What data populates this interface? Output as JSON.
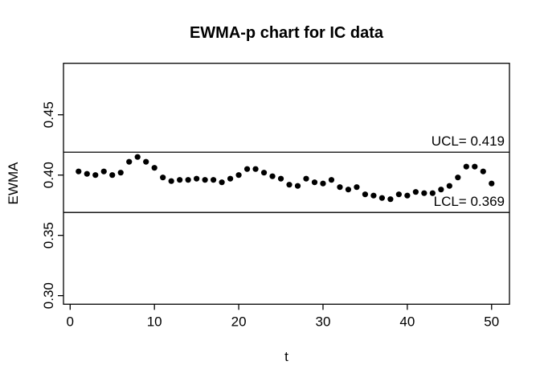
{
  "chart_data": {
    "type": "scatter",
    "title": "EWMA-p chart for IC data",
    "xlabel": "t",
    "ylabel": "EWMA",
    "grid": false,
    "legend": "none",
    "point_color": "#000000",
    "line_color": "#000000",
    "background_color": "#ffffff",
    "xlim": [
      -0.79,
      52.12
    ],
    "ylim": [
      0.2929,
      0.4927
    ],
    "x_tick_values": [
      0,
      10,
      20,
      30,
      40,
      50
    ],
    "x_tick_labels": [
      "0",
      "10",
      "20",
      "30",
      "40",
      "50"
    ],
    "y_tick_values": [
      0.3,
      0.35,
      0.4,
      0.45
    ],
    "y_tick_labels": [
      "0.30",
      "0.35",
      "0.40",
      "0.45"
    ],
    "ucl": {
      "value": 0.419,
      "label": "UCL= 0.419"
    },
    "lcl": {
      "value": 0.369,
      "label": "LCL= 0.369"
    },
    "x": [
      1,
      2,
      3,
      4,
      5,
      6,
      7,
      8,
      9,
      10,
      11,
      12,
      13,
      14,
      15,
      16,
      17,
      18,
      19,
      20,
      21,
      22,
      23,
      24,
      25,
      26,
      27,
      28,
      29,
      30,
      31,
      32,
      33,
      34,
      35,
      36,
      37,
      38,
      39,
      40,
      41,
      42,
      43,
      44,
      45,
      46,
      47,
      48,
      49,
      50
    ],
    "values": [
      0.403,
      0.401,
      0.4,
      0.403,
      0.4,
      0.402,
      0.411,
      0.415,
      0.411,
      0.406,
      0.398,
      0.395,
      0.396,
      0.396,
      0.397,
      0.396,
      0.396,
      0.394,
      0.397,
      0.4,
      0.405,
      0.405,
      0.402,
      0.399,
      0.397,
      0.392,
      0.391,
      0.397,
      0.394,
      0.393,
      0.396,
      0.39,
      0.388,
      0.39,
      0.384,
      0.383,
      0.381,
      0.38,
      0.384,
      0.383,
      0.386,
      0.385,
      0.385,
      0.388,
      0.391,
      0.398,
      0.407,
      0.407,
      0.403,
      0.393
    ]
  }
}
